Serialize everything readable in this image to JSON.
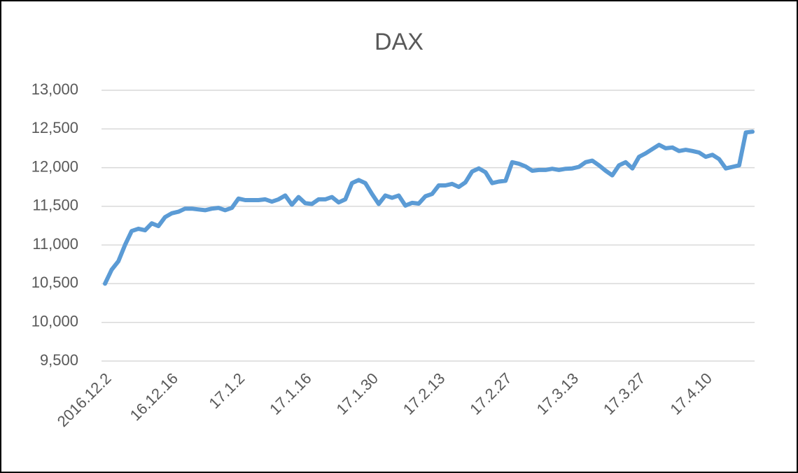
{
  "chart_data": {
    "type": "line",
    "title": "DAX",
    "categories": [
      "2016.12.2",
      null,
      null,
      null,
      null,
      null,
      null,
      null,
      null,
      null,
      "16.12.16",
      null,
      null,
      null,
      null,
      null,
      null,
      null,
      null,
      null,
      "17.1.2",
      null,
      null,
      null,
      null,
      null,
      null,
      null,
      null,
      null,
      "17.1.16",
      null,
      null,
      null,
      null,
      null,
      null,
      null,
      null,
      null,
      "17.1.30",
      null,
      null,
      null,
      null,
      null,
      null,
      null,
      null,
      null,
      "17.2.13",
      null,
      null,
      null,
      null,
      null,
      null,
      null,
      null,
      null,
      "17.2.27",
      null,
      null,
      null,
      null,
      null,
      null,
      null,
      null,
      null,
      "17.3.13",
      null,
      null,
      null,
      null,
      null,
      null,
      null,
      null,
      null,
      "17.3.27",
      null,
      null,
      null,
      null,
      null,
      null,
      null,
      null,
      null,
      "17.4.10",
      null,
      null,
      null,
      null,
      null,
      null,
      null
    ],
    "series": [
      {
        "name": "DAX",
        "color": "#5b9bd5",
        "values": [
          10500,
          10680,
          10790,
          11000,
          11180,
          11210,
          11190,
          11280,
          11245,
          11360,
          11410,
          11430,
          11470,
          11470,
          11460,
          11450,
          11470,
          11480,
          11450,
          11480,
          11600,
          11580,
          11580,
          11580,
          11590,
          11560,
          11590,
          11640,
          11520,
          11620,
          11540,
          11530,
          11590,
          11590,
          11620,
          11550,
          11590,
          11800,
          11840,
          11800,
          11660,
          11530,
          11640,
          11610,
          11640,
          11510,
          11545,
          11535,
          11630,
          11660,
          11770,
          11770,
          11790,
          11750,
          11810,
          11950,
          11990,
          11940,
          11800,
          11820,
          11830,
          12070,
          12050,
          12015,
          11960,
          11970,
          11970,
          11985,
          11970,
          11985,
          11990,
          12010,
          12070,
          12090,
          12030,
          11960,
          11900,
          12030,
          12070,
          11990,
          12140,
          12185,
          12240,
          12295,
          12250,
          12260,
          12215,
          12230,
          12215,
          12195,
          12140,
          12165,
          12110,
          11990,
          12010,
          12030,
          12455,
          12465
        ]
      }
    ],
    "ylim": [
      9500,
      13000
    ],
    "yticks": [
      {
        "value": 9500,
        "label": "9,500"
      },
      {
        "value": 10000,
        "label": "10,000"
      },
      {
        "value": 10500,
        "label": "10,500"
      },
      {
        "value": 11000,
        "label": "11,000"
      },
      {
        "value": 11500,
        "label": "11,500"
      },
      {
        "value": 12000,
        "label": "12,000"
      },
      {
        "value": 12500,
        "label": "12,500"
      },
      {
        "value": 13000,
        "label": "13,000"
      }
    ],
    "grid": true
  }
}
